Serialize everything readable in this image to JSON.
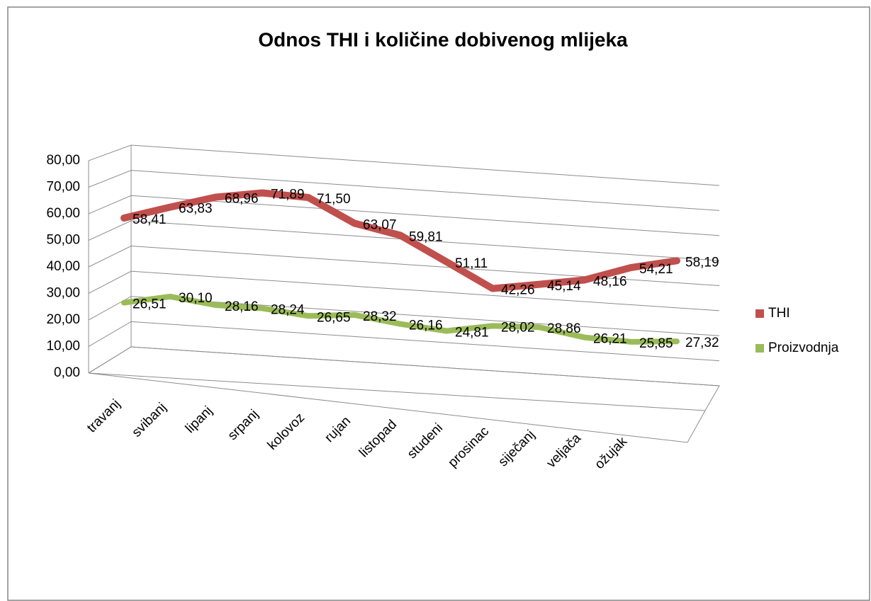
{
  "chart_data": {
    "type": "line",
    "title": "Odnos THI i količine dobivenog mlijeka",
    "categories": [
      "travanj",
      "svibanj",
      "lipanj",
      "srpanj",
      "kolovoz",
      "rujan",
      "listopad",
      "studeni",
      "prosinac",
      "siječanj",
      "veljača",
      "ožujak",
      null
    ],
    "series": [
      {
        "name": "THI",
        "color": "#c0504d",
        "values": [
          58.41,
          63.83,
          68.96,
          71.89,
          71.5,
          63.07,
          59.81,
          51.11,
          42.26,
          45.14,
          48.16,
          54.21,
          58.19
        ],
        "value_labels": [
          "58,41",
          "63,83",
          "68,96",
          "71,89",
          "71,50",
          "63,07",
          "59,81",
          "51,11",
          "42,26",
          "45,14",
          "48,16",
          "54,21",
          "58,19"
        ]
      },
      {
        "name": "Proizvodnja",
        "color": "#9bbb59",
        "values": [
          26.51,
          30.1,
          28.16,
          28.24,
          26.65,
          28.32,
          26.16,
          24.81,
          28.02,
          28.86,
          26.21,
          25.85,
          27.32
        ],
        "value_labels": [
          "26,51",
          "30,10",
          "28,16",
          "28,24",
          "26,65",
          "28,32",
          "26,16",
          "24,81",
          "28,02",
          "28,86",
          "26,21",
          "25,85",
          "27,32"
        ]
      }
    ],
    "ylim": [
      0,
      80
    ],
    "yticks": [
      {
        "value": 0,
        "label": "0,00"
      },
      {
        "value": 10,
        "label": "10,00"
      },
      {
        "value": 20,
        "label": "20,00"
      },
      {
        "value": 30,
        "label": "30,00"
      },
      {
        "value": 40,
        "label": "40,00"
      },
      {
        "value": 50,
        "label": "50,00"
      },
      {
        "value": 60,
        "label": "60,00"
      },
      {
        "value": 70,
        "label": "70,00"
      },
      {
        "value": 80,
        "label": "80,00"
      }
    ],
    "grid": true,
    "legend": "right",
    "three_d": true
  }
}
